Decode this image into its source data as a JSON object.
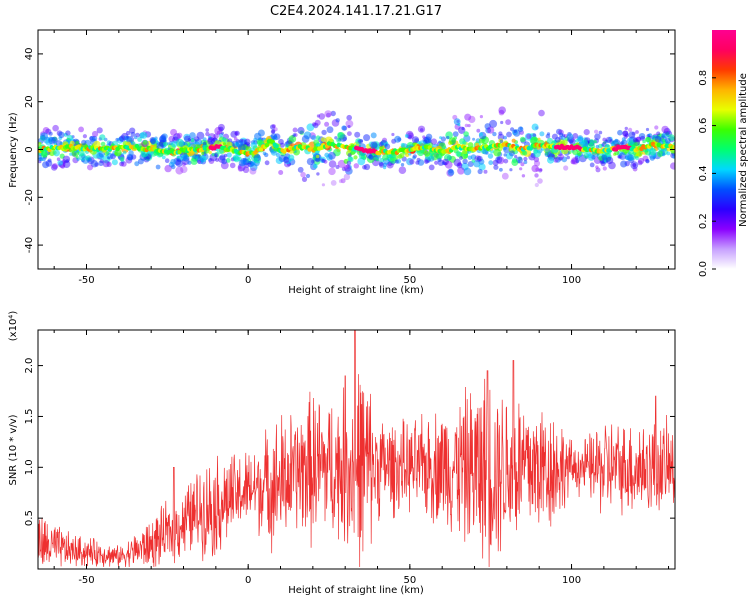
{
  "title": "C2E4.2024.141.17.21.G17",
  "colorbar": {
    "label": "Normalized spectral amplitude",
    "ticks": [
      "0.0",
      "0.2",
      "0.4",
      "0.6",
      "0.8"
    ],
    "colors": [
      "#ffffff",
      "#c7a0ff",
      "#8a00ff",
      "#2a00ff",
      "#0050ff",
      "#00d8ff",
      "#00ff70",
      "#3cff00",
      "#e8ff00",
      "#ffb400",
      "#ff3a00",
      "#ff0060",
      "#ff0090"
    ]
  },
  "chart_data": [
    {
      "type": "heatmap",
      "xlabel": "Height of straight line (km)",
      "ylabel": "Frequency (Hz)",
      "xlim": [
        -65,
        132
      ],
      "ylim": [
        -50,
        50
      ],
      "xticks": [
        -50,
        0,
        50,
        100
      ],
      "xtick_labels": [
        "-50",
        "0",
        "50",
        "100"
      ],
      "yticks": [
        -40,
        -20,
        0,
        20,
        40
      ],
      "ytick_labels": [
        "-40",
        "-20",
        "0",
        "20",
        "40"
      ],
      "zlim": [
        0,
        1
      ],
      "ridge_x": [
        -65,
        -55,
        -45,
        -35,
        -25,
        -15,
        -10,
        -5,
        0,
        5,
        7,
        10,
        15,
        20,
        25,
        30,
        35,
        40,
        45,
        50,
        55,
        60,
        65,
        70,
        75,
        80,
        85,
        90,
        95,
        100,
        105,
        110,
        115,
        120,
        125,
        132
      ],
      "ridge_y": [
        0,
        1,
        0,
        1,
        -1,
        0,
        1,
        0,
        -2,
        1,
        4,
        -1,
        1,
        0,
        2,
        1,
        0,
        -1,
        -1,
        0,
        1,
        -1,
        1,
        0,
        1,
        2,
        0,
        2,
        1,
        1,
        0,
        -1,
        1,
        0,
        2,
        1
      ]
    },
    {
      "type": "line",
      "xlabel": "Height of straight line (km)",
      "ylabel": "SNR (10 * v/v)",
      "y_multiplier": "(x10⁴)",
      "xlim": [
        -65,
        132
      ],
      "ylim": [
        0,
        2.35
      ],
      "xticks": [
        -50,
        0,
        50,
        100
      ],
      "xtick_labels": [
        "-50",
        "0",
        "50",
        "100"
      ],
      "yticks": [
        0.5,
        1.0,
        1.5,
        2.0
      ],
      "ytick_labels": [
        "0.5",
        "1.0",
        "1.5",
        "2.0"
      ],
      "color": "#ee3030",
      "envelope_x": [
        -65,
        -55,
        -45,
        -40,
        -35,
        -30,
        -25,
        -20,
        -15,
        -10,
        -5,
        0,
        5,
        10,
        15,
        20,
        25,
        30,
        35,
        40,
        45,
        50,
        55,
        60,
        65,
        70,
        75,
        80,
        85,
        90,
        95,
        100,
        105,
        110,
        115,
        120,
        125,
        132
      ],
      "envelope_mean": [
        0.25,
        0.18,
        0.15,
        0.12,
        0.18,
        0.24,
        0.35,
        0.45,
        0.58,
        0.62,
        0.7,
        0.78,
        0.82,
        0.85,
        0.95,
        1.0,
        1.0,
        1.0,
        1.0,
        1.02,
        1.0,
        1.0,
        1.0,
        1.02,
        1.0,
        0.98,
        1.0,
        1.0,
        1.0,
        1.0,
        1.0,
        1.0,
        1.0,
        1.0,
        1.0,
        1.0,
        1.0,
        1.0
      ],
      "envelope_spread": [
        0.35,
        0.2,
        0.15,
        0.12,
        0.2,
        0.3,
        0.35,
        0.4,
        0.5,
        0.6,
        0.5,
        0.45,
        0.6,
        0.8,
        0.7,
        0.9,
        0.8,
        0.9,
        1.3,
        0.6,
        0.55,
        0.5,
        0.6,
        0.7,
        0.8,
        1.0,
        1.1,
        0.95,
        0.9,
        0.8,
        0.7,
        0.3,
        0.35,
        0.6,
        0.5,
        0.6,
        0.55,
        0.5
      ],
      "peaks": [
        {
          "x": -23,
          "y": 1.0
        },
        {
          "x": 33,
          "y": 2.35
        },
        {
          "x": 30,
          "y": 1.9
        },
        {
          "x": 74,
          "y": 1.95
        },
        {
          "x": 82,
          "y": 2.05
        },
        {
          "x": 126,
          "y": 1.7
        }
      ]
    }
  ]
}
